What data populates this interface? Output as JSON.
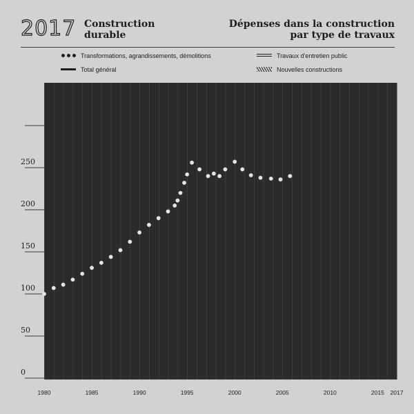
{
  "header": {
    "year": "2017",
    "title_left_line1": "Construction",
    "title_left_line2": "durable",
    "title_right_line1": "Dépenses dans la construction",
    "title_right_line2": "par type de travaux"
  },
  "chart_data": {
    "type": "scatter",
    "series": [
      {
        "name": "Transformations, agrandissements, démolitions",
        "marker": "dots",
        "x": [
          1980,
          1981,
          1982,
          1983,
          1984,
          1985,
          1986,
          1987,
          1988,
          1989,
          1990,
          1991,
          1992,
          1993,
          1993.7,
          1994,
          1994.3,
          1994.7,
          1995,
          1995.5,
          1996.3,
          1997.2,
          1997.8,
          1998.4,
          1999,
          2000,
          2000.8,
          2001.7,
          2002.7,
          2003.8,
          2004.8,
          2005.8
        ],
        "y": [
          100,
          107,
          111,
          117,
          124,
          131,
          137,
          144,
          152,
          162,
          173,
          182,
          190,
          198,
          205,
          211,
          220,
          232,
          242,
          256,
          248,
          240,
          243,
          240,
          248,
          257,
          248,
          241,
          238,
          237,
          236,
          240
        ]
      },
      {
        "name": "Travaux d'entretien public",
        "marker": "double-line",
        "x": [],
        "y": []
      },
      {
        "name": "Total général",
        "marker": "thick-line",
        "x": [],
        "y": []
      },
      {
        "name": "Nouvelles constructions",
        "marker": "hatch",
        "x": [],
        "y": []
      }
    ],
    "x_ticks": [
      "1980",
      "1985",
      "1990",
      "1995",
      "2000",
      "2005",
      "2010",
      "2015",
      "2017"
    ],
    "y_ticks": [
      "0",
      "50",
      "100",
      "150",
      "200",
      "250"
    ],
    "xlim": [
      1980,
      2017
    ],
    "ylim": [
      0,
      300
    ],
    "grid": "vertical",
    "legend_position": "top",
    "colors": {
      "background": "#d4d1d4",
      "plot": "#2c2a2d",
      "marker": "#e6e4e6",
      "grid": "#4a484b"
    }
  }
}
